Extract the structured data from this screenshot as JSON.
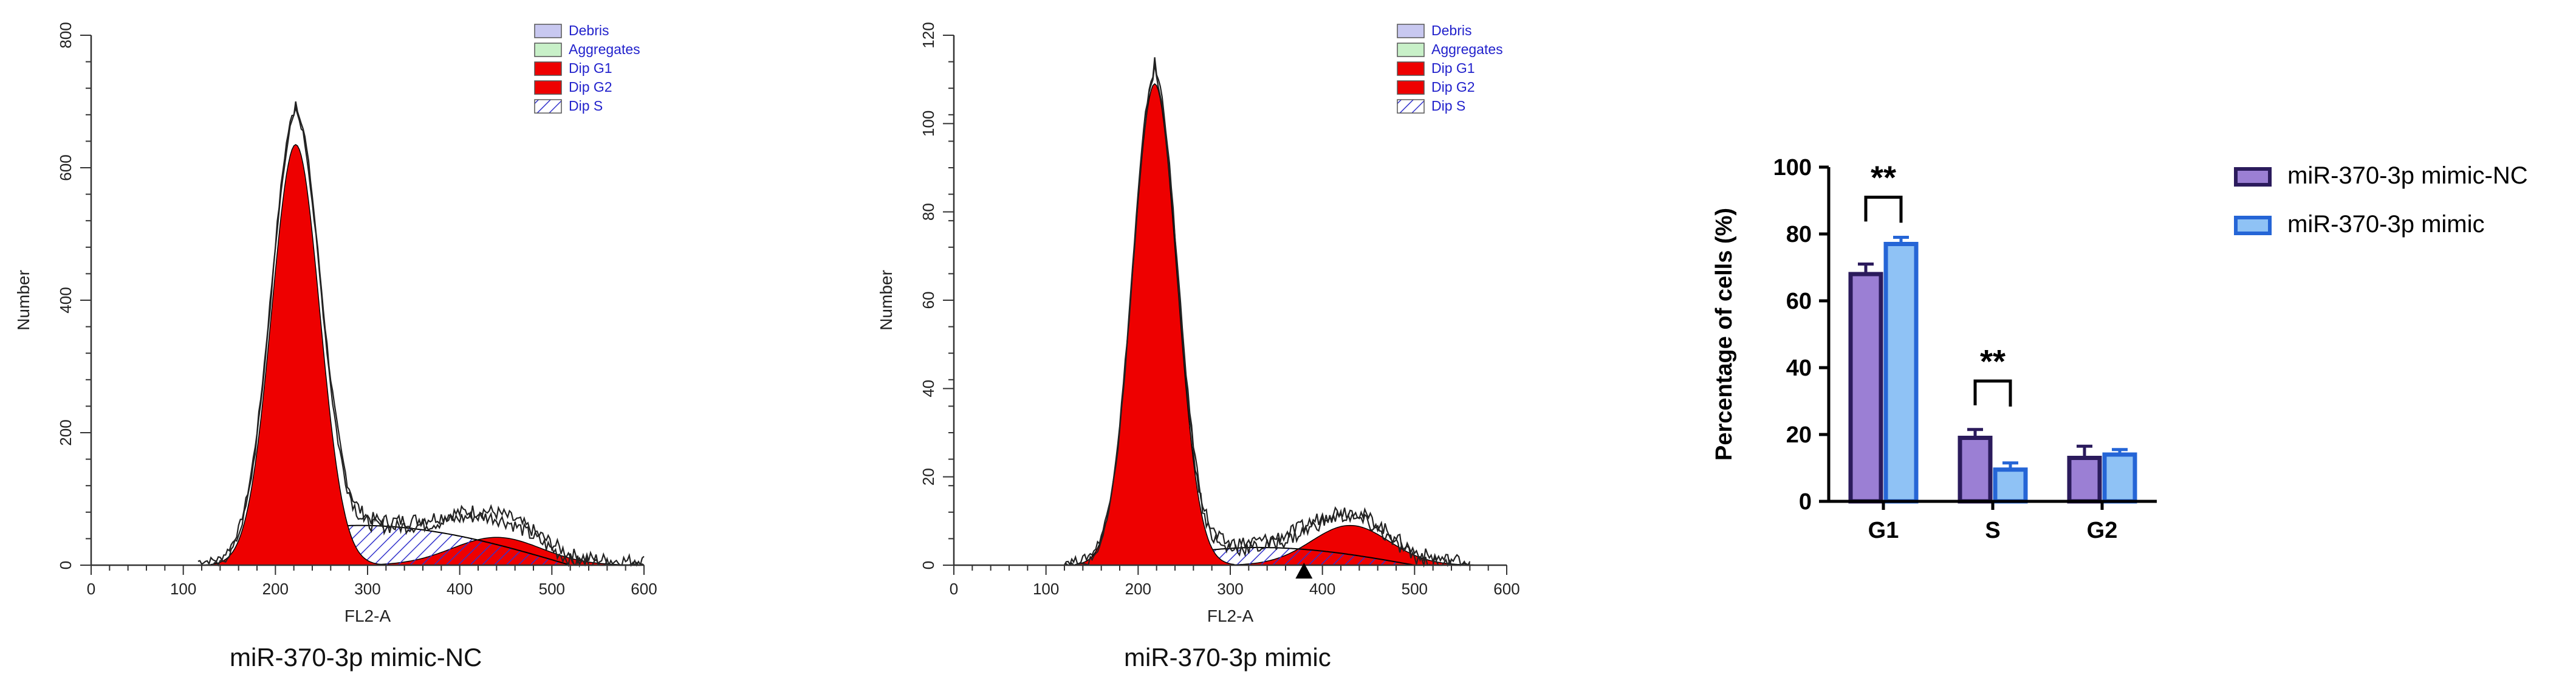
{
  "colors": {
    "debris": "#c8c8f0",
    "aggregates": "#c8f0c8",
    "dip_g1": "#ee0000",
    "dip_g2": "#ee0000",
    "dip_s_hatch": "#3333cc",
    "legend_text": "#2222cc",
    "bar_nc": "#9b7fd4",
    "bar_nc_edge": "#2b1b5c",
    "bar_mimic": "#8fc2f5",
    "bar_mimic_edge": "#2565d6"
  },
  "chart_data": [
    {
      "type": "area",
      "panel": "left-histogram",
      "title": "miR-370-3p mimic-NC",
      "xlabel": "FL2-A",
      "ylabel": "Number",
      "xlim": [
        0,
        600
      ],
      "ylim": [
        0,
        800
      ],
      "xticks": [
        "0",
        "100",
        "200",
        "300",
        "400",
        "500",
        "600"
      ],
      "yticks": [
        "0",
        "200",
        "400",
        "600",
        "800"
      ],
      "legend": [
        "Debris",
        "Aggregates",
        "Dip G1",
        "Dip G2",
        "Dip S"
      ],
      "legend_position": "top-right",
      "model": {
        "g1": {
          "mean": 222,
          "sd": 26,
          "peak": 635
        },
        "g2": {
          "mean": 440,
          "sd": 48,
          "peak": 42
        },
        "s": {
          "from": 140,
          "peak_at": 290,
          "to": 520,
          "height": 60
        }
      },
      "raw_peak": 700,
      "raw_shoulder": 90
    },
    {
      "type": "area",
      "panel": "middle-histogram",
      "title": "miR-370-3p mimic",
      "xlabel": "FL2-A",
      "ylabel": "Number",
      "xlim": [
        0,
        600
      ],
      "ylim": [
        0,
        120
      ],
      "xticks": [
        "0",
        "100",
        "200",
        "300",
        "400",
        "500",
        "600"
      ],
      "yticks": [
        "0",
        "20",
        "40",
        "60",
        "80",
        "100",
        "120"
      ],
      "legend": [
        "Debris",
        "Aggregates",
        "Dip G1",
        "Dip G2",
        "Dip S"
      ],
      "legend_position": "top-right",
      "model": {
        "g1": {
          "mean": 218,
          "sd": 24,
          "peak": 109
        },
        "g2": {
          "mean": 430,
          "sd": 42,
          "peak": 9
        },
        "s": {
          "from": 180,
          "peak_at": 330,
          "to": 500,
          "height": 4
        }
      },
      "raw_peak": 115,
      "raw_shoulder": 12,
      "marker_x": 380
    },
    {
      "type": "bar",
      "panel": "right-bar-chart",
      "title": "",
      "xlabel": "",
      "ylabel": "Percentage of cells (%)",
      "ylim": [
        0,
        100
      ],
      "yticks": [
        "0",
        "20",
        "40",
        "60",
        "80",
        "100"
      ],
      "categories": [
        "G1",
        "S",
        "G2"
      ],
      "series": [
        {
          "name": "miR-370-3p mimic-NC",
          "values": [
            68,
            19,
            13
          ],
          "errors": [
            3,
            2.5,
            3.5
          ]
        },
        {
          "name": "miR-370-3p mimic",
          "values": [
            77,
            9.5,
            14
          ],
          "errors": [
            2,
            2,
            1.5
          ]
        }
      ],
      "significance": [
        {
          "category": "G1",
          "label": "**"
        },
        {
          "category": "S",
          "label": "**"
        }
      ],
      "legend_position": "right"
    }
  ]
}
